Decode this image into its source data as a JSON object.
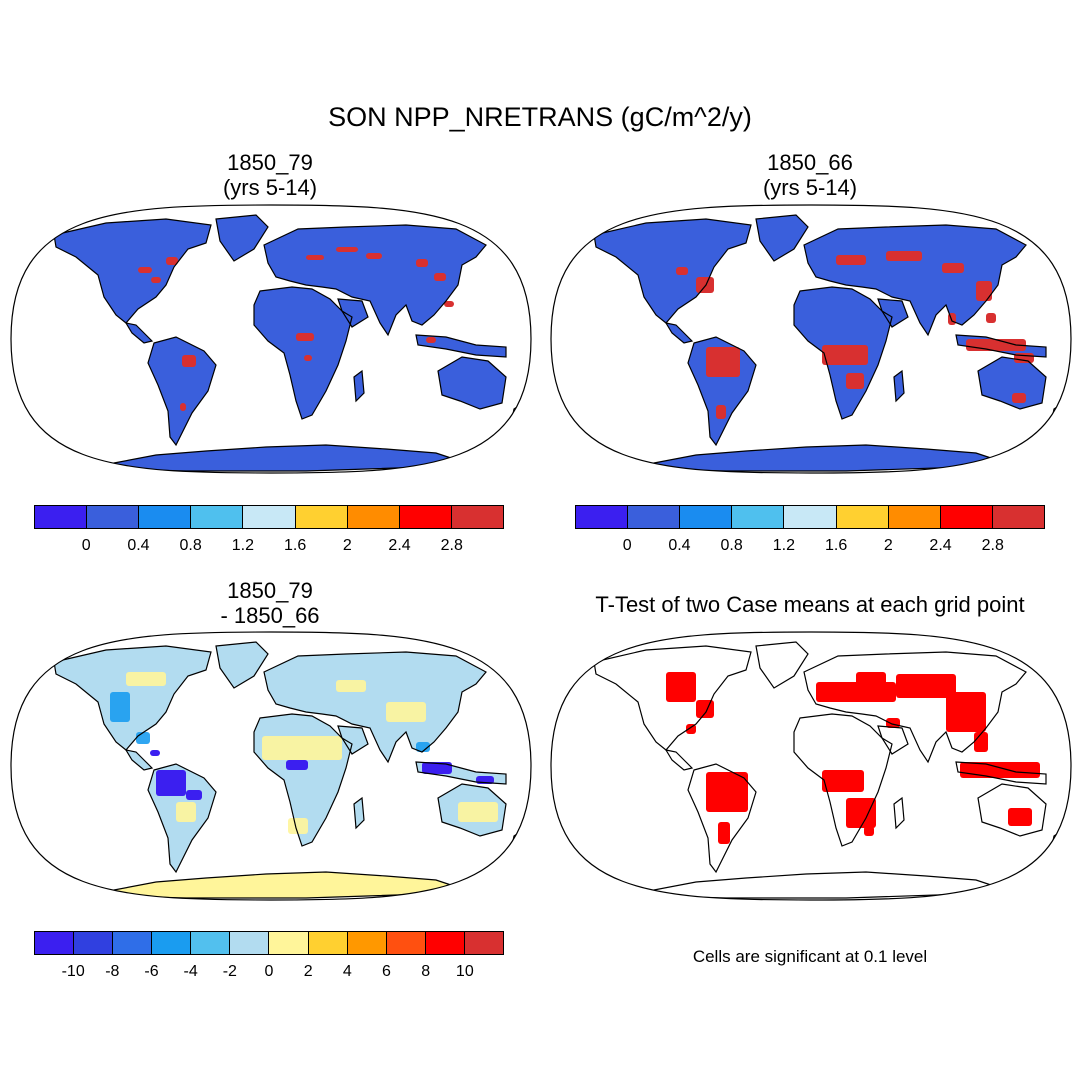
{
  "main_title": "SON NPP_NRETRANS (gC/m^2/y)",
  "panels": [
    {
      "id": "top-left",
      "title_line1": "1850_79",
      "title_line2": "(yrs 5-14)",
      "ocean_color": "#ffffff",
      "land_color": "#3a5fdc",
      "antarctica_color": "#3a5fdc",
      "hotspot_color": "#d83030"
    },
    {
      "id": "top-right",
      "title_line1": "1850_66",
      "title_line2": "(yrs 5-14)",
      "ocean_color": "#ffffff",
      "land_color": "#3a5fdc",
      "antarctica_color": "#3a5fdc",
      "hotspot_color": "#d83030"
    },
    {
      "id": "bottom-left",
      "title_line1": "1850_79",
      "title_line2": "- 1850_66",
      "ocean_color": "#ffffff",
      "land_color": "#b2dcf0",
      "antarctica_color": "#fff59a",
      "hotspot_color": "#3b1ff0"
    },
    {
      "id": "bottom-right",
      "title_line1": "T-Test of two Case means at each grid point",
      "title_line2": "",
      "ocean_color": "#ffffff",
      "land_color": "#ffffff",
      "antarctica_color": "#ffffff",
      "hotspot_color": "#ff0000"
    }
  ],
  "colorbars": [
    {
      "id": "cbar-top-left",
      "colors": [
        "#3b1ff0",
        "#3a5fdc",
        "#1a8cf0",
        "#4fc0ee",
        "#c8e8f6",
        "#ffd030",
        "#ff8c00",
        "#ff0000",
        "#d83030"
      ],
      "labels": [
        "0",
        "0.4",
        "0.8",
        "1.2",
        "1.6",
        "2",
        "2.4",
        "2.8"
      ]
    },
    {
      "id": "cbar-top-right",
      "colors": [
        "#3b1ff0",
        "#3a5fdc",
        "#1a8cf0",
        "#4fc0ee",
        "#c8e8f6",
        "#ffd030",
        "#ff8c00",
        "#ff0000",
        "#d83030"
      ],
      "labels": [
        "0",
        "0.4",
        "0.8",
        "1.2",
        "1.6",
        "2",
        "2.4",
        "2.8"
      ]
    },
    {
      "id": "cbar-bottom-left",
      "colors": [
        "#3b1ff0",
        "#3040e0",
        "#2f6ee8",
        "#1a9cf0",
        "#52c0ee",
        "#b2dcf0",
        "#fff59a",
        "#ffd030",
        "#ff9800",
        "#ff5010",
        "#ff0000",
        "#d83030"
      ],
      "labels": [
        "-10",
        "-8",
        "-6",
        "-4",
        "-2",
        "0",
        "2",
        "4",
        "6",
        "8",
        "10"
      ]
    }
  ],
  "note": "Cells are significant at 0.1 level"
}
